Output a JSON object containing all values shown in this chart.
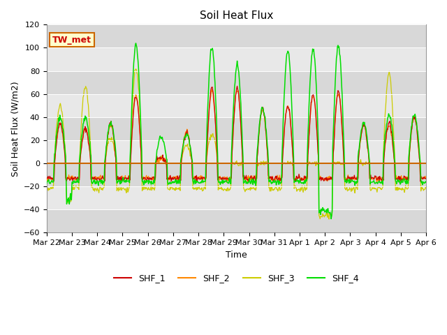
{
  "title": "Soil Heat Flux",
  "ylabel": "Soil Heat Flux (W/m2)",
  "xlabel": "Time",
  "ylim": [
    -60,
    120
  ],
  "yticks": [
    -60,
    -40,
    -20,
    0,
    20,
    40,
    60,
    80,
    100,
    120
  ],
  "xtick_labels": [
    "Mar 22",
    "Mar 23",
    "Mar 24",
    "Mar 25",
    "Mar 26",
    "Mar 27",
    "Mar 28",
    "Mar 29",
    "Mar 30",
    "Mar 31",
    "Apr 1",
    "Apr 2",
    "Apr 3",
    "Apr 4",
    "Apr 5",
    "Apr 6"
  ],
  "colors": {
    "SHF_1": "#cc0000",
    "SHF_2": "#ff8800",
    "SHF_3": "#cccc00",
    "SHF_4": "#00dd00"
  },
  "bg_color": "#e8e8e8",
  "band_colors": [
    "#d8d8d8",
    "#e8e8e8"
  ],
  "zero_line_color": "#cc6600",
  "annotation_text": "TW_met",
  "annotation_bg": "#ffffcc",
  "annotation_fg": "#cc0000",
  "title_fontsize": 11,
  "label_fontsize": 9,
  "tick_fontsize": 8
}
